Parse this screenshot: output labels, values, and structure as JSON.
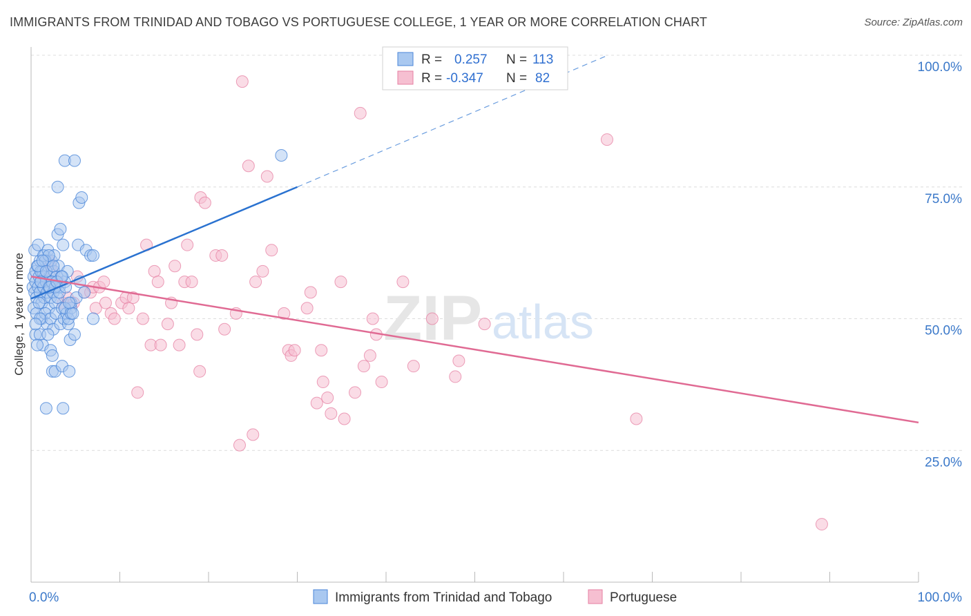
{
  "title": "IMMIGRANTS FROM TRINIDAD AND TOBAGO VS PORTUGUESE COLLEGE, 1 YEAR OR MORE CORRELATION CHART",
  "source": "Source: ZipAtlas.com",
  "watermark": {
    "zip": "ZIP",
    "atlas": "atlas"
  },
  "colors": {
    "blue": "#4a86d8",
    "blue_fill": "#a9c8f0",
    "blue_line": "#2a72d0",
    "pink": "#e67fa2",
    "pink_fill": "#f6bfd1",
    "pink_line": "#e06a93",
    "tick_label": "#3a78c9",
    "grid": "#dcdcdc"
  },
  "legend": {
    "rows": [
      {
        "r_label": "R =",
        "r_value": "0.257",
        "n_label": "N =",
        "n_value": "113"
      },
      {
        "r_label": "R =",
        "r_value": "-0.347",
        "n_label": "N =",
        "n_value": "82"
      }
    ]
  },
  "chart_data": {
    "type": "scatter",
    "xlabel": "",
    "ylabel": "College, 1 year or more",
    "xlim": [
      0,
      100
    ],
    "ylim": [
      0,
      100
    ],
    "x_tick_labels": [
      "0.0%",
      "100.0%"
    ],
    "y_tick_labels": [
      "25.0%",
      "50.0%",
      "75.0%",
      "100.0%"
    ],
    "y_ticks": [
      25,
      50,
      75,
      100
    ],
    "grid": true,
    "legend_position": "bottom",
    "series": [
      {
        "name": "Immigrants from Trinidad and Tobago",
        "color": "#4a86d8",
        "points": [
          [
            0.2,
            56
          ],
          [
            0.3,
            58
          ],
          [
            0.4,
            55
          ],
          [
            0.5,
            57
          ],
          [
            0.5,
            59
          ],
          [
            0.6,
            54
          ],
          [
            0.7,
            60
          ],
          [
            0.8,
            56
          ],
          [
            0.9,
            58
          ],
          [
            1.0,
            55
          ],
          [
            1.0,
            61
          ],
          [
            1.1,
            57
          ],
          [
            1.2,
            53
          ],
          [
            1.3,
            59
          ],
          [
            1.4,
            56
          ],
          [
            1.5,
            54
          ],
          [
            1.5,
            62
          ],
          [
            1.6,
            58
          ],
          [
            1.7,
            57
          ],
          [
            1.8,
            55
          ],
          [
            1.9,
            60
          ],
          [
            2.0,
            56
          ],
          [
            2.0,
            52
          ],
          [
            2.1,
            58
          ],
          [
            2.2,
            54
          ],
          [
            2.3,
            61
          ],
          [
            2.4,
            57
          ],
          [
            2.5,
            55
          ],
          [
            2.6,
            59
          ],
          [
            2.7,
            53
          ],
          [
            2.8,
            56
          ],
          [
            2.9,
            58
          ],
          [
            3.0,
            54
          ],
          [
            3.1,
            60
          ],
          [
            3.2,
            56
          ],
          [
            0.3,
            52
          ],
          [
            0.6,
            51
          ],
          [
            0.9,
            53
          ],
          [
            1.2,
            50
          ],
          [
            1.6,
            51
          ],
          [
            1.8,
            49
          ],
          [
            2.2,
            50
          ],
          [
            2.5,
            48
          ],
          [
            2.8,
            51
          ],
          [
            3.3,
            49
          ],
          [
            3.5,
            52
          ],
          [
            3.7,
            50
          ],
          [
            4.0,
            51
          ],
          [
            4.2,
            49
          ],
          [
            4.5,
            52
          ],
          [
            0.4,
            63
          ],
          [
            0.8,
            64
          ],
          [
            1.4,
            62
          ],
          [
            1.9,
            63
          ],
          [
            2.6,
            62
          ],
          [
            3.0,
            66
          ],
          [
            3.3,
            67
          ],
          [
            3.6,
            64
          ],
          [
            0.5,
            47
          ],
          [
            1.0,
            47
          ],
          [
            1.3,
            45
          ],
          [
            1.9,
            47
          ],
          [
            2.2,
            44
          ],
          [
            2.4,
            43
          ],
          [
            2.4,
            40
          ],
          [
            2.7,
            40
          ],
          [
            3.5,
            41
          ],
          [
            4.3,
            40
          ],
          [
            4.4,
            46
          ],
          [
            4.9,
            47
          ],
          [
            0.7,
            45
          ],
          [
            1.7,
            33
          ],
          [
            3.6,
            33
          ],
          [
            3.0,
            75
          ],
          [
            3.8,
            80
          ],
          [
            4.9,
            80
          ],
          [
            5.4,
            72
          ],
          [
            5.7,
            73
          ],
          [
            5.3,
            64
          ],
          [
            6.2,
            63
          ],
          [
            6.7,
            62
          ],
          [
            7.0,
            62
          ],
          [
            7.0,
            50
          ],
          [
            3.8,
            57
          ],
          [
            4.1,
            59
          ],
          [
            4.5,
            53
          ],
          [
            5.1,
            54
          ],
          [
            5.5,
            57
          ],
          [
            6.0,
            55
          ],
          [
            1.1,
            59
          ],
          [
            1.6,
            61
          ],
          [
            2.0,
            62
          ],
          [
            2.3,
            57
          ],
          [
            2.7,
            56
          ],
          [
            3.4,
            58
          ],
          [
            3.8,
            52
          ],
          [
            4.2,
            50
          ],
          [
            4.5,
            51
          ],
          [
            4.7,
            51
          ],
          [
            1.0,
            50
          ],
          [
            0.5,
            49
          ],
          [
            0.8,
            60
          ],
          [
            1.1,
            57
          ],
          [
            1.3,
            61
          ],
          [
            1.7,
            59
          ],
          [
            2.1,
            56
          ],
          [
            2.5,
            60
          ],
          [
            2.9,
            57
          ],
          [
            3.2,
            55
          ],
          [
            3.5,
            58
          ],
          [
            3.9,
            56
          ],
          [
            4.3,
            53
          ],
          [
            28.2,
            81
          ]
        ]
      },
      {
        "name": "Portuguese",
        "color": "#e67fa2",
        "points": [
          [
            1.5,
            58
          ],
          [
            2.0,
            61
          ],
          [
            2.2,
            60
          ],
          [
            2.4,
            59
          ],
          [
            2.7,
            57
          ],
          [
            3.1,
            57
          ],
          [
            3.6,
            53
          ],
          [
            4.1,
            54
          ],
          [
            4.8,
            53
          ],
          [
            5.2,
            58
          ],
          [
            6.0,
            55
          ],
          [
            6.7,
            55
          ],
          [
            7.0,
            56
          ],
          [
            7.3,
            52
          ],
          [
            7.7,
            56
          ],
          [
            8.2,
            57
          ],
          [
            8.4,
            53
          ],
          [
            9.0,
            51
          ],
          [
            9.4,
            50
          ],
          [
            10.2,
            53
          ],
          [
            10.7,
            54
          ],
          [
            11.0,
            52
          ],
          [
            11.5,
            54
          ],
          [
            12.0,
            36
          ],
          [
            12.6,
            50
          ],
          [
            13.0,
            64
          ],
          [
            13.5,
            45
          ],
          [
            13.9,
            59
          ],
          [
            14.3,
            57
          ],
          [
            14.6,
            45
          ],
          [
            15.4,
            49
          ],
          [
            15.8,
            53
          ],
          [
            16.2,
            60
          ],
          [
            16.7,
            45
          ],
          [
            17.3,
            57
          ],
          [
            17.6,
            64
          ],
          [
            18.1,
            57
          ],
          [
            18.7,
            47
          ],
          [
            19.0,
            40
          ],
          [
            19.1,
            73
          ],
          [
            19.6,
            72
          ],
          [
            20.8,
            62
          ],
          [
            21.5,
            62
          ],
          [
            21.8,
            48
          ],
          [
            23.1,
            51
          ],
          [
            23.8,
            95
          ],
          [
            24.5,
            79
          ],
          [
            25.3,
            57
          ],
          [
            26.1,
            59
          ],
          [
            26.6,
            77
          ],
          [
            27.1,
            63
          ],
          [
            28.5,
            51
          ],
          [
            29.0,
            44
          ],
          [
            29.3,
            43
          ],
          [
            29.7,
            44
          ],
          [
            31.1,
            52
          ],
          [
            31.5,
            55
          ],
          [
            32.2,
            34
          ],
          [
            32.7,
            44
          ],
          [
            32.9,
            38
          ],
          [
            33.4,
            35
          ],
          [
            33.8,
            32
          ],
          [
            34.9,
            57
          ],
          [
            35.3,
            31
          ],
          [
            36.5,
            36
          ],
          [
            37.1,
            89
          ],
          [
            37.5,
            41
          ],
          [
            38.2,
            43
          ],
          [
            38.5,
            50
          ],
          [
            38.9,
            47
          ],
          [
            39.5,
            38
          ],
          [
            41.9,
            57
          ],
          [
            43.1,
            41
          ],
          [
            45.2,
            50
          ],
          [
            47.8,
            39
          ],
          [
            48.2,
            42
          ],
          [
            51.1,
            49
          ],
          [
            64.9,
            84
          ],
          [
            68.2,
            31
          ],
          [
            89.1,
            11
          ],
          [
            23.5,
            26
          ],
          [
            25.0,
            28
          ]
        ]
      }
    ],
    "trendlines": [
      {
        "series": "Immigrants from Trinidad and Tobago",
        "solid": [
          [
            0,
            53.8
          ],
          [
            30,
            75
          ]
        ],
        "dashed": [
          [
            30,
            75
          ],
          [
            65,
            100
          ]
        ]
      },
      {
        "series": "Portuguese",
        "solid": [
          [
            0,
            58
          ],
          [
            100,
            30.3
          ]
        ]
      }
    ]
  }
}
